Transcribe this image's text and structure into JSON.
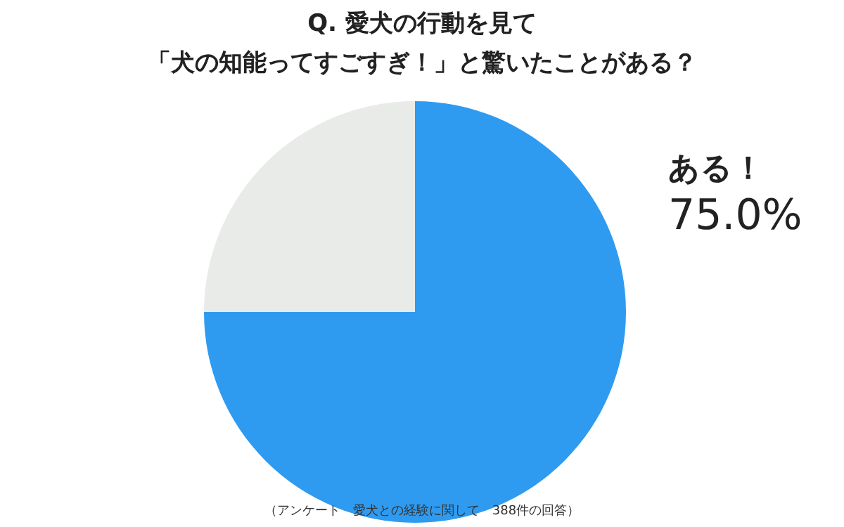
{
  "chart_data": {
    "type": "pie",
    "title": "Q.  愛犬の行動を見て",
    "subtitle": "「犬の知能ってすごすぎ！」と驚いたことがある？",
    "categories": [
      "ある！",
      null
    ],
    "values": [
      75,
      25
    ],
    "colors": [
      "#2f9bf0",
      "#e9ebe8"
    ],
    "value_labels": [
      "75.0%",
      null
    ],
    "annotations": [
      "（アンケート　愛犬との経験に関して　388件の回答）"
    ]
  }
}
